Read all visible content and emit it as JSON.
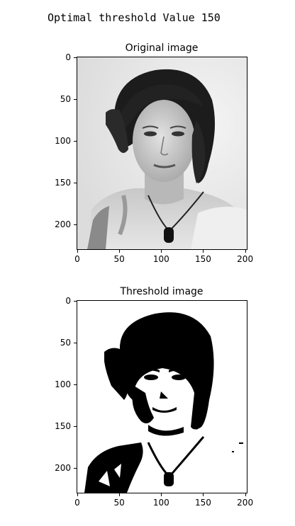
{
  "output_text": "Optimal threshold Value 150",
  "panels": [
    {
      "title": "Original image",
      "kind": "grayscale-photo",
      "x_ticks": [
        "0",
        "50",
        "100",
        "150",
        "200"
      ],
      "y_ticks": [
        "0",
        "50",
        "100",
        "150",
        "200"
      ]
    },
    {
      "title": "Threshold image",
      "kind": "binary-threshold",
      "x_ticks": [
        "0",
        "50",
        "100",
        "150",
        "200"
      ],
      "y_ticks": [
        "0",
        "50",
        "100",
        "150",
        "200"
      ]
    }
  ]
}
